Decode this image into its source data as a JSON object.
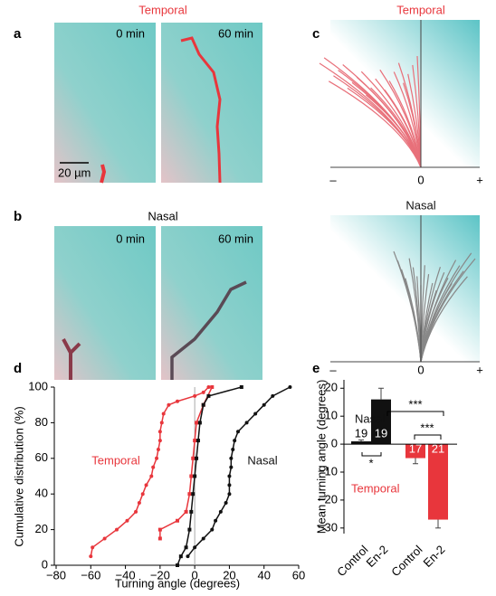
{
  "panels": {
    "a": {
      "label": "a",
      "title": "Temporal",
      "times": [
        "0 min",
        "60 min"
      ],
      "scale_bar": "20 µm"
    },
    "b": {
      "label": "b",
      "title": "Nasal",
      "times": [
        "0 min",
        "60 min"
      ]
    },
    "c": {
      "label": "c",
      "plots": [
        {
          "title": "Temporal",
          "ticks": [
            "–",
            "0",
            "+"
          ]
        },
        {
          "title": "Nasal",
          "ticks": [
            "–",
            "0",
            "+"
          ]
        }
      ]
    }
  },
  "chart_data": [
    {
      "panel_label": "d",
      "type": "line",
      "xlabel": "Turning angle (degrees)",
      "ylabel": "Cumulative distribution (%)",
      "xlim": [
        -80,
        60
      ],
      "ylim": [
        0,
        100
      ],
      "xticks": [
        {
          "value": -80,
          "label": "−80"
        },
        {
          "value": -60,
          "label": "−60"
        },
        {
          "value": -40,
          "label": "−40"
        },
        {
          "value": -20,
          "label": "−20"
        },
        0,
        20,
        40,
        60
      ],
      "yticks": [
        0,
        20,
        40,
        60,
        80,
        100
      ],
      "series": [
        {
          "name": "Temporal",
          "color": "#e8363c",
          "marker": "circle",
          "x": [
            -60,
            -59,
            -52,
            -45,
            -39,
            -34,
            -32,
            -30,
            -28,
            -25,
            -24,
            -22,
            -21,
            -20,
            -20,
            -19,
            -18,
            -15,
            -10,
            0,
            5,
            8
          ],
          "values": [
            5,
            10,
            15,
            20,
            25,
            30,
            35,
            40,
            45,
            50,
            55,
            60,
            65,
            70,
            75,
            80,
            85,
            90,
            92,
            95,
            97,
            100
          ]
        },
        {
          "name": "Nasal",
          "color": "#111111",
          "marker": "circle",
          "x": [
            -4,
            0,
            5,
            10,
            12,
            15,
            18,
            20,
            20,
            20,
            21,
            21,
            22,
            23,
            25,
            30,
            35,
            40,
            45,
            55
          ],
          "values": [
            5,
            10,
            15,
            20,
            25,
            30,
            35,
            40,
            45,
            50,
            55,
            60,
            65,
            70,
            75,
            80,
            85,
            90,
            95,
            100
          ]
        },
        {
          "color": "#e8363c",
          "marker": "square",
          "x": [
            -20,
            -20,
            -10,
            -5,
            -3,
            -2,
            -1,
            0,
            1,
            5,
            10
          ],
          "values": [
            15,
            20,
            25,
            30,
            40,
            50,
            60,
            70,
            80,
            90,
            100
          ]
        },
        {
          "color": "#111111",
          "marker": "square",
          "x": [
            -10,
            -8,
            -5,
            -3,
            -2,
            -1,
            0,
            1,
            2,
            3,
            5,
            8,
            27
          ],
          "values": [
            0,
            5,
            10,
            20,
            30,
            40,
            50,
            60,
            70,
            80,
            90,
            95,
            100
          ]
        }
      ]
    },
    {
      "panel_label": "e",
      "type": "bar",
      "ylabel": "Mean turning angle (degrees)",
      "ylim": [
        -32,
        23
      ],
      "yticks": [
        {
          "value": -30,
          "label": "−30"
        },
        {
          "value": -20,
          "label": "−20"
        },
        {
          "value": -10,
          "label": "−10"
        },
        0,
        10,
        20
      ],
      "categories": [
        "Control",
        "En-2",
        "Control",
        "En-2"
      ],
      "values": [
        1,
        16,
        -5,
        -27
      ],
      "errors": [
        0.5,
        4,
        2,
        3
      ],
      "colors": [
        "#111111",
        "#111111",
        "#e8363c",
        "#e8363c"
      ],
      "n_labels": [
        "19",
        "19",
        "17",
        "21"
      ],
      "groups": [
        {
          "name": "Nasal",
          "color": "#111111"
        },
        {
          "name": "Temporal",
          "color": "#e8363c"
        }
      ],
      "significance": [
        "*",
        "***",
        "***"
      ]
    }
  ]
}
